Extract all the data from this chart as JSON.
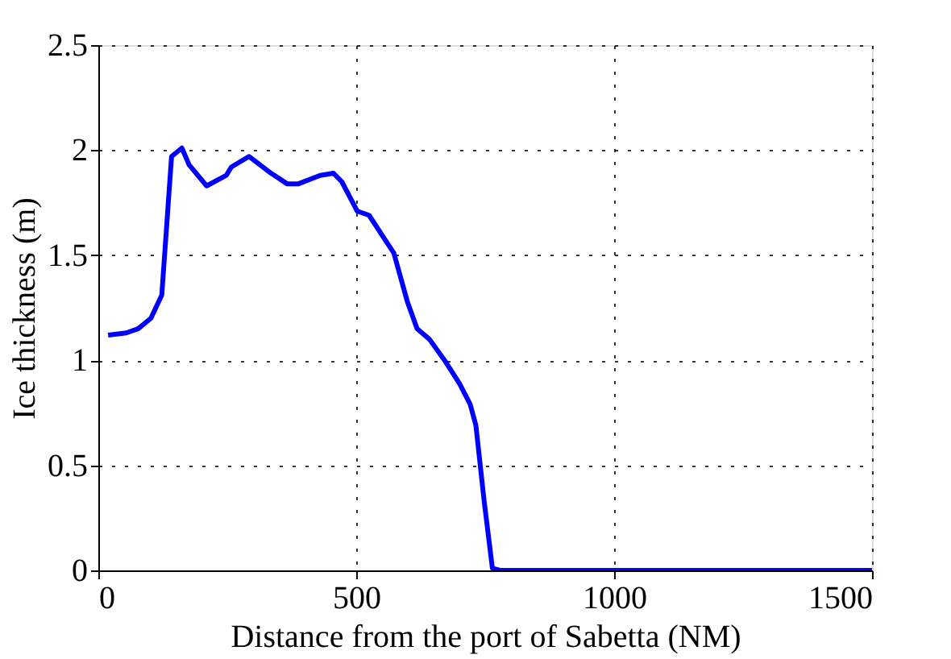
{
  "chart_data": {
    "type": "line",
    "xlabel": "Distance from the port of Sabetta (NM)",
    "ylabel": "Ice thickness (m)",
    "xlim": [
      0,
      1500
    ],
    "xticks": [
      0,
      500,
      1000,
      1500
    ],
    "ylim": [
      0,
      2.5
    ],
    "yticks": [
      0,
      0.5,
      1,
      1.5,
      2,
      2.5
    ],
    "grid": true,
    "marker": "none",
    "line_style": "solid",
    "series": [
      {
        "color": "#0000ff",
        "x": [
          19,
          54,
          77,
          102,
          123,
          142,
          162,
          176,
          210,
          248,
          258,
          292,
          335,
          366,
          388,
          430,
          456,
          472,
          502,
          525,
          557,
          573,
          599,
          618,
          642,
          674,
          700,
          721,
          732,
          748,
          764,
          779,
          1000,
          1500
        ],
        "values": [
          1.12,
          1.13,
          1.15,
          1.2,
          1.31,
          1.97,
          2.01,
          1.93,
          1.83,
          1.88,
          1.92,
          1.97,
          1.89,
          1.84,
          1.84,
          1.88,
          1.89,
          1.85,
          1.71,
          1.69,
          1.57,
          1.51,
          1.28,
          1.15,
          1.1,
          0.99,
          0.89,
          0.79,
          0.69,
          0.33,
          0.01,
          0,
          0,
          0
        ]
      }
    ]
  }
}
